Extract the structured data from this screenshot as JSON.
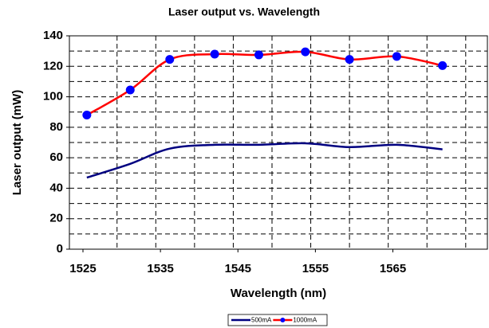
{
  "chart_data": {
    "type": "line",
    "title": "Laser output vs. Wavelength",
    "xlabel": "Wavelength (nm)",
    "ylabel": "Laser output (mW)",
    "x": [
      1525.5,
      1531.1,
      1536.2,
      1542.0,
      1547.7,
      1553.7,
      1559.4,
      1565.5,
      1571.4
    ],
    "series": [
      {
        "name": "500mA",
        "color": "#000080",
        "marker": false,
        "values": [
          47,
          56,
          66,
          68.5,
          68.5,
          69.5,
          67,
          68.5,
          65.5
        ]
      },
      {
        "name": "1000mA",
        "color": "#ff0000",
        "marker": true,
        "marker_color": "#0000ff",
        "values": [
          88,
          104.5,
          124.5,
          128,
          127.5,
          129.5,
          124.5,
          126.5,
          120.5
        ]
      }
    ],
    "xlim": [
      1523.25,
      1577.2
    ],
    "xticks": [
      1525,
      1535,
      1545,
      1555,
      1565
    ],
    "xgrid": [
      1529.4,
      1534.4,
      1539.4,
      1544.4,
      1549.4,
      1554.4,
      1559.4,
      1564.4,
      1569.4,
      1574.4
    ],
    "ylim": [
      0,
      140
    ],
    "yticks": [
      0,
      20,
      40,
      60,
      80,
      100,
      120,
      140
    ],
    "ygrid": [
      10,
      20,
      30,
      40,
      50,
      60,
      70,
      80,
      90,
      100,
      110,
      120,
      130
    ],
    "legend": "bottom"
  }
}
